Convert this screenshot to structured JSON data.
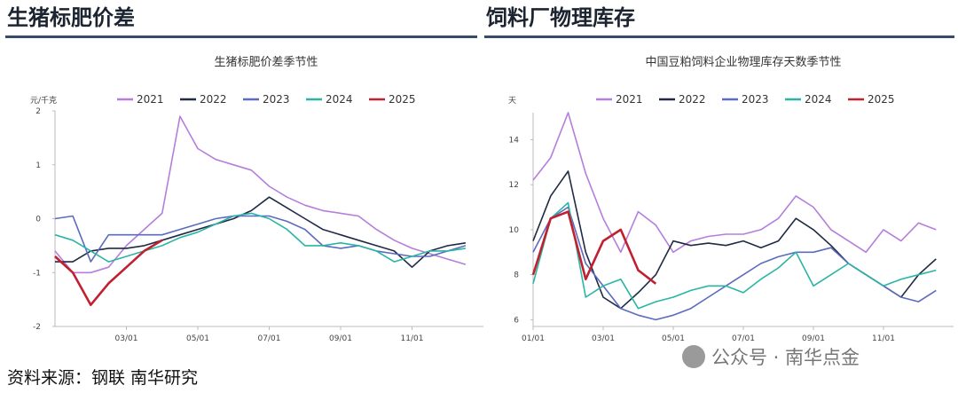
{
  "headers": [
    "生猪标肥价差",
    "饲料厂物理库存"
  ],
  "source": "资料来源：钢联 南华研究",
  "watermark": "公众号 · 南华点金",
  "chart_data": [
    {
      "type": "line",
      "title": "生猪标肥价差季节性",
      "y_label": "元/千克",
      "categories": [
        null,
        null,
        null,
        null,
        "03/01",
        null,
        null,
        null,
        "05/01",
        null,
        null,
        null,
        "07/01",
        null,
        null,
        null,
        "09/01",
        null,
        null,
        null,
        "11/01",
        null,
        null,
        null
      ],
      "ylim": [
        -2,
        2
      ],
      "yticks": [
        -2,
        -1,
        0,
        1,
        2
      ],
      "series": [
        {
          "name": "2021",
          "color": "#b57edc",
          "values": [
            -0.6,
            -1.0,
            -1.0,
            -0.9,
            -0.5,
            -0.2,
            0.1,
            1.9,
            1.3,
            1.1,
            1.0,
            0.9,
            0.6,
            0.4,
            0.25,
            0.15,
            0.1,
            0.05,
            -0.2,
            -0.4,
            -0.55,
            -0.65,
            -0.75,
            -0.85
          ]
        },
        {
          "name": "2022",
          "color": "#1f2a44",
          "values": [
            -0.8,
            -0.8,
            -0.6,
            -0.55,
            -0.55,
            -0.5,
            -0.4,
            -0.3,
            -0.2,
            -0.1,
            0.0,
            0.15,
            0.4,
            0.2,
            0.0,
            -0.2,
            -0.3,
            -0.4,
            -0.5,
            -0.6,
            -0.9,
            -0.6,
            -0.5,
            -0.45
          ]
        },
        {
          "name": "2023",
          "color": "#5b6bbf",
          "values": [
            0.0,
            0.05,
            -0.8,
            -0.3,
            -0.3,
            -0.3,
            -0.3,
            -0.2,
            -0.1,
            0.0,
            0.05,
            0.05,
            0.05,
            -0.05,
            -0.2,
            -0.5,
            -0.55,
            -0.5,
            -0.6,
            -0.65,
            -0.7,
            -0.7,
            -0.6,
            -0.5
          ]
        },
        {
          "name": "2024",
          "color": "#2ab5a5",
          "values": [
            -0.3,
            -0.4,
            -0.6,
            -0.8,
            -0.7,
            -0.6,
            -0.5,
            -0.35,
            -0.25,
            -0.1,
            0.05,
            0.1,
            0.0,
            -0.2,
            -0.5,
            -0.5,
            -0.45,
            -0.5,
            -0.6,
            -0.8,
            -0.7,
            -0.6,
            -0.6,
            -0.55
          ]
        },
        {
          "name": "2025",
          "color": "#c0202f",
          "values": [
            -0.7,
            -1.0,
            -1.6,
            -1.2,
            -0.9,
            -0.6,
            -0.4,
            null,
            null,
            null,
            null,
            null,
            null,
            null,
            null,
            null,
            null,
            null,
            null,
            null,
            null,
            null,
            null,
            null
          ]
        }
      ]
    },
    {
      "type": "line",
      "title": "中国豆粕饲料企业物理库存天数季节性",
      "y_label": "天",
      "categories": [
        "01/01",
        null,
        null,
        null,
        "03/01",
        null,
        null,
        null,
        "05/01",
        null,
        null,
        null,
        "07/01",
        null,
        null,
        null,
        "09/01",
        null,
        null,
        null,
        "11/01",
        null,
        null,
        null
      ],
      "ylim": [
        5.7,
        15.2
      ],
      "yticks": [
        6,
        8,
        10,
        12,
        14
      ],
      "series": [
        {
          "name": "2021",
          "color": "#b57edc",
          "values": [
            12.2,
            13.2,
            15.2,
            12.5,
            10.5,
            9.0,
            10.8,
            10.2,
            9.0,
            9.5,
            9.7,
            9.8,
            9.8,
            10.0,
            10.5,
            11.5,
            11.0,
            10.0,
            9.5,
            9.0,
            10.0,
            9.5,
            10.3,
            10.0
          ]
        },
        {
          "name": "2022",
          "color": "#1f2a44",
          "values": [
            9.5,
            11.5,
            12.6,
            9.0,
            7.0,
            6.5,
            7.2,
            8.0,
            9.5,
            9.3,
            9.4,
            9.3,
            9.5,
            9.2,
            9.5,
            10.5,
            10.0,
            9.3,
            8.5,
            8.0,
            7.5,
            7.0,
            8.0,
            8.7
          ]
        },
        {
          "name": "2023",
          "color": "#5b6bbf",
          "values": [
            9.0,
            10.5,
            11.0,
            8.5,
            7.5,
            6.5,
            6.2,
            6.0,
            6.2,
            6.5,
            7.0,
            7.5,
            8.0,
            8.5,
            8.8,
            9.0,
            9.0,
            9.2,
            8.5,
            8.0,
            7.5,
            7.0,
            6.8,
            7.3
          ]
        },
        {
          "name": "2024",
          "color": "#2ab5a5",
          "values": [
            7.6,
            10.5,
            11.2,
            7.0,
            7.5,
            7.8,
            6.5,
            6.8,
            7.0,
            7.3,
            7.5,
            7.5,
            7.2,
            7.8,
            8.3,
            9.0,
            7.5,
            8.0,
            8.5,
            8.0,
            7.5,
            7.8,
            8.0,
            8.2
          ]
        },
        {
          "name": "2025",
          "color": "#c0202f",
          "values": [
            8.0,
            10.5,
            10.8,
            7.8,
            9.5,
            10.0,
            8.2,
            7.6,
            null,
            null,
            null,
            null,
            null,
            null,
            null,
            null,
            null,
            null,
            null,
            null,
            null,
            null,
            null,
            null
          ]
        }
      ]
    }
  ]
}
